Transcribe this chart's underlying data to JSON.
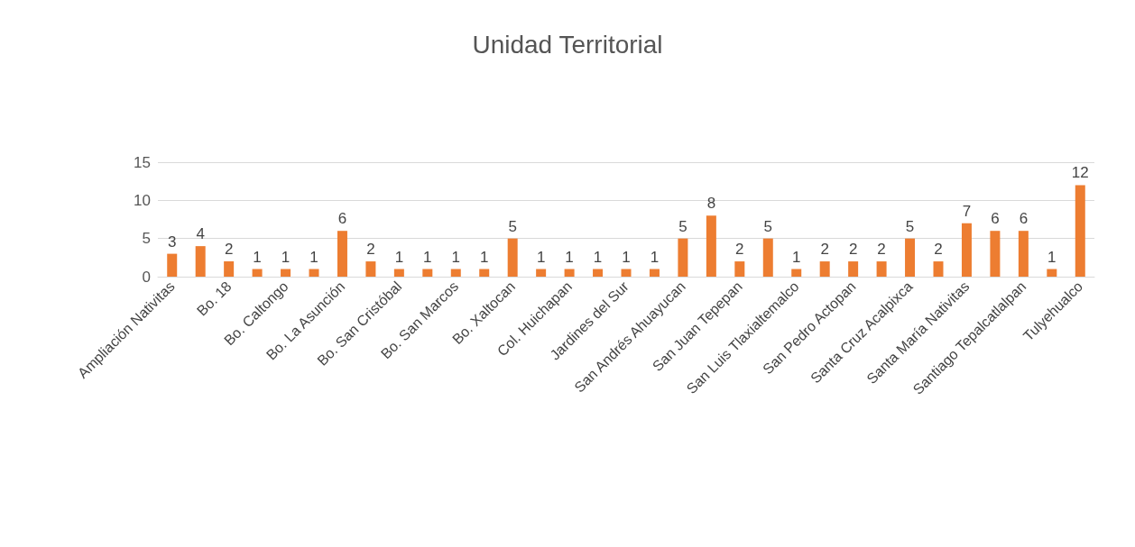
{
  "chart_data": {
    "type": "bar",
    "title": "Unidad Territorial",
    "categories": [
      "Ampliación Nativitas",
      null,
      "Bo. 18",
      null,
      "Bo. Caltongo",
      null,
      "Bo. La Asunción",
      null,
      "Bo. San Cristóbal",
      null,
      "Bo. San Marcos",
      null,
      "Bo. Xaltocan",
      null,
      "Col. Huichapan",
      null,
      "Jardines del Sur",
      null,
      "San Andrés Ahuayucan",
      null,
      "San Juan Tepepan",
      null,
      "San Luis Tlaxialtemalco",
      null,
      "San Pedro Actopan",
      null,
      "Santa Cruz Acalpixca",
      null,
      "Santa María Nativitas",
      null,
      "Santiago Tepalcatlalpan",
      null,
      "Tulyehualco"
    ],
    "values": [
      3,
      4,
      2,
      1,
      1,
      1,
      6,
      2,
      1,
      1,
      1,
      1,
      5,
      1,
      1,
      1,
      1,
      1,
      5,
      8,
      2,
      5,
      1,
      2,
      2,
      2,
      5,
      2,
      7,
      6,
      6,
      1,
      12
    ],
    "color": "#ed7d31",
    "ylim": [
      0,
      15
    ],
    "yticks": [
      0,
      5,
      10,
      15
    ],
    "grid": true,
    "data_labels": true
  }
}
